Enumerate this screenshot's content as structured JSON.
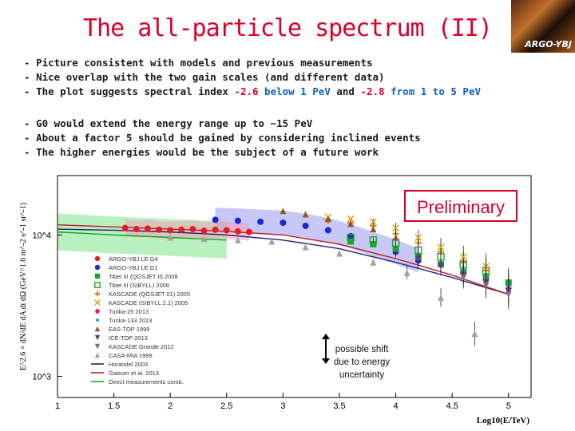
{
  "slide": {
    "title": "The all-particle spectrum (II)",
    "logo_text": "ARGO-YBJ"
  },
  "bullets_top": [
    {
      "text": "Picture consistent with models and previous measurements"
    },
    {
      "text": "Nice overlap with the two gain scales (and different data)"
    },
    {
      "pre": "The plot suggests spectral index ",
      "idx1": "-2.6",
      "mid": " below 1 PeV",
      "and": " and ",
      "idx2": "-2.8",
      "post": " from 1 to 5 PeV"
    }
  ],
  "bullets_bottom": [
    {
      "text": "G0 would extend the energy range up to ~15 PeV"
    },
    {
      "text": "About a factor 5 should be gained by considering inclined events"
    },
    {
      "text": "The higher energies would be the subject of a future work"
    }
  ],
  "annotations": {
    "preliminary": "Preliminary",
    "shift_line1": "possible shift",
    "shift_line2": "due to energy",
    "shift_line3": "uncertainty"
  },
  "chart_data": {
    "type": "scatter",
    "xlabel": "Log10(E/TeV)",
    "ylabel": "E^2.6 × dN/dE dA dt dΩ (GeV^1.6 m^-2 s^-1 sr^-1)",
    "x_ticks": [
      "1",
      "1.5",
      "2",
      "2.5",
      "3",
      "3.5",
      "4",
      "4.5",
      "5"
    ],
    "y_ticks": [
      "10^3",
      "10^4"
    ],
    "xlim": [
      1,
      5.2
    ],
    "ylim_log10": [
      2.85,
      4.42
    ],
    "legend_placement": "lower-left",
    "series": [
      {
        "name": "ARGO-YBJ LE G4",
        "color": "#e02020",
        "marker": "circle",
        "x": [
          1.6,
          1.7,
          1.8,
          1.9,
          2.0,
          2.1,
          2.2,
          2.3,
          2.4,
          2.5,
          2.6,
          2.7
        ],
        "y": [
          11200,
          11000,
          11100,
          10900,
          10800,
          10900,
          11000,
          10700,
          10900,
          10800,
          10600,
          10500
        ]
      },
      {
        "name": "ARGO-YBJ LE G1",
        "color": "#1a2ad0",
        "marker": "circle",
        "x": [
          2.4,
          2.6,
          2.8,
          3.0,
          3.2,
          3.4,
          3.6,
          3.8,
          4.0,
          4.2
        ],
        "y": [
          12800,
          12600,
          12400,
          12200,
          11600,
          10800,
          9800,
          8600,
          7600,
          6600
        ]
      },
      {
        "name": "Tibet III (QGSJET II) 2008",
        "color": "#18a828",
        "marker": "square",
        "x": [
          3.6,
          3.8,
          4.0,
          4.2,
          4.4,
          4.6,
          4.8,
          5.0
        ],
        "y": [
          9000,
          8600,
          8000,
          7000,
          6200,
          5500,
          5000,
          4600
        ]
      },
      {
        "name": "Tibet III (SIBYLL) 2008",
        "color": "#18a828",
        "marker": "square-open",
        "x": [
          3.6,
          3.8,
          4.0,
          4.2,
          4.4,
          4.6,
          4.8
        ],
        "y": [
          9600,
          9200,
          8800,
          7800,
          7000,
          6200,
          5600
        ]
      },
      {
        "name": "KASCADE (QGSJET 01) 2005",
        "color": "#e07820",
        "marker": "plus",
        "x": [
          3.4,
          3.6,
          3.8,
          4.0,
          4.2,
          4.4,
          4.6,
          4.8
        ],
        "y": [
          12600,
          12200,
          11600,
          10200,
          8800,
          7600,
          6400,
          5600
        ]
      },
      {
        "name": "KASCADE (SIBYLL 2.1) 2005",
        "color": "#d8a820",
        "marker": "cross-open",
        "x": [
          3.4,
          3.6,
          3.8,
          4.0,
          4.2,
          4.4,
          4.6,
          4.8
        ],
        "y": [
          13400,
          13000,
          12400,
          11200,
          9600,
          8200,
          7000,
          6000
        ]
      },
      {
        "name": "Tunka-25 2013",
        "color": "#e01070",
        "marker": "star",
        "x": [
          4.6,
          4.8,
          5.0
        ],
        "y": [
          5400,
          4800,
          4200
        ]
      },
      {
        "name": "Tunka-133 2013",
        "color": "#10a0c0",
        "marker": "dot",
        "x": [
          4.4,
          4.6,
          4.8,
          5.0
        ],
        "y": [
          6200,
          5600,
          5000,
          4400
        ]
      },
      {
        "name": "EAS-TOP 1999",
        "color": "#8a5a20",
        "marker": "triangle",
        "x": [
          3.0,
          3.2,
          3.4,
          3.6,
          3.8,
          4.0
        ],
        "y": [
          14800,
          14000,
          13000,
          12000,
          11000,
          9600
        ]
      },
      {
        "name": "ICE-TOP 2013",
        "color": "#703080",
        "marker": "triangle-down",
        "x": [
          4.2,
          4.4,
          4.6,
          4.8,
          5.0
        ],
        "y": [
          6800,
          6000,
          5200,
          4600,
          4000
        ]
      },
      {
        "name": "KASCADE Grande 2012",
        "color": "#807070",
        "marker": "triangle-down",
        "x": [
          4.6,
          4.8,
          5.0
        ],
        "y": [
          5000,
          4400,
          3800
        ]
      },
      {
        "name": "CASA-MIA 1999",
        "color": "#a0a0a0",
        "marker": "triangle",
        "x": [
          2.0,
          2.3,
          2.6,
          2.9,
          3.2,
          3.5,
          3.8,
          4.1,
          4.4,
          4.7
        ],
        "y": [
          9600,
          9400,
          9200,
          9000,
          8200,
          7400,
          6400,
          5400,
          3600,
          2000
        ]
      }
    ],
    "models": [
      {
        "name": "Horandel 2003",
        "color": "#202080",
        "x": [
          1.0,
          1.5,
          2.0,
          2.5,
          3.0,
          3.5,
          4.0,
          4.5,
          5.0
        ],
        "y": [
          11000,
          10800,
          10500,
          10000,
          9200,
          8000,
          6400,
          5000,
          3800
        ]
      },
      {
        "name": "Gaisser et al. 2013",
        "color": "#c02020",
        "x": [
          1.0,
          1.5,
          2.0,
          2.5,
          3.0,
          3.5,
          4.0,
          4.5,
          5.0
        ],
        "y": [
          11800,
          11400,
          11000,
          10600,
          10000,
          8600,
          6800,
          5200,
          3800
        ]
      },
      {
        "name": "Direct measurements comb.",
        "color": "#20a020",
        "x": [
          1.0,
          1.5,
          2.0,
          2.5
        ],
        "y": [
          10500,
          10000,
          9600,
          9200
        ]
      }
    ]
  }
}
